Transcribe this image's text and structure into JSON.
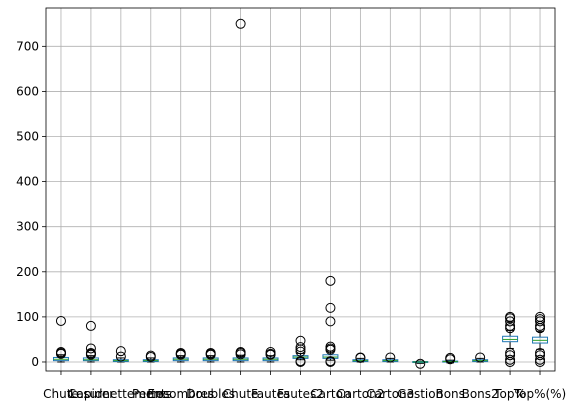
{
  "chart_data": {
    "type": "box",
    "title": "",
    "xlabel": "",
    "ylabel": "",
    "ylim": [
      -20,
      785
    ],
    "yticks": [
      0,
      100,
      200,
      300,
      400,
      500,
      600,
      700
    ],
    "grid": true,
    "colors": {
      "box": "#1f77b4",
      "median": "#2ca02c",
      "whisker": "#000000",
      "grid": "#b0b0b0"
    },
    "categories": [
      "Chute",
      "Cesurer",
      "Lapidnettements",
      "Pertes",
      "Encombres",
      "Doubles",
      "Chute",
      "Fautes",
      "Fautes2",
      "Carton",
      "Carton2",
      "Carton3",
      "Gestion",
      "Bons",
      "Bons2",
      "Top%",
      "Top%(%)"
    ],
    "series": [
      {
        "min": 0,
        "q1": 3,
        "median": 6,
        "q3": 10,
        "max": 16,
        "outliers": [
          18,
          20,
          22,
          91
        ]
      },
      {
        "min": 0,
        "q1": 3,
        "median": 5,
        "q3": 9,
        "max": 14,
        "outliers": [
          16,
          18,
          20,
          30,
          80
        ]
      },
      {
        "min": 0,
        "q1": 1,
        "median": 3,
        "q3": 5,
        "max": 9,
        "outliers": [
          12,
          24
        ]
      },
      {
        "min": 0,
        "q1": 1,
        "median": 3,
        "q3": 5,
        "max": 9,
        "outliers": [
          11,
          14
        ]
      },
      {
        "min": 0,
        "q1": 3,
        "median": 6,
        "q3": 9,
        "max": 14,
        "outliers": [
          16,
          18,
          20
        ]
      },
      {
        "min": 0,
        "q1": 3,
        "median": 6,
        "q3": 9,
        "max": 14,
        "outliers": [
          16,
          18,
          20
        ]
      },
      {
        "min": 0,
        "q1": 3,
        "median": 6,
        "q3": 9,
        "max": 15,
        "outliers": [
          17,
          20,
          22,
          750
        ]
      },
      {
        "min": 0,
        "q1": 3,
        "median": 6,
        "q3": 9,
        "max": 14,
        "outliers": [
          16,
          18,
          22
        ]
      },
      {
        "min": 5,
        "q1": 8,
        "median": 11,
        "q3": 14,
        "max": 19,
        "outliers": [
          0,
          2,
          23,
          28,
          33,
          47
        ]
      },
      {
        "min": 4,
        "q1": 8,
        "median": 11,
        "q3": 16,
        "max": 24,
        "outliers": [
          0,
          2,
          27,
          30,
          34,
          90,
          120,
          180
        ]
      },
      {
        "min": 0,
        "q1": 1,
        "median": 3,
        "q3": 5,
        "max": 8,
        "outliers": [
          9,
          10
        ]
      },
      {
        "min": 0,
        "q1": 1,
        "median": 3,
        "q3": 5,
        "max": 8,
        "outliers": [
          10
        ]
      },
      {
        "min": -3,
        "q1": -1,
        "median": 0,
        "q3": 1,
        "max": 2,
        "outliers": [
          -4
        ]
      },
      {
        "min": -2,
        "q1": 0,
        "median": 1,
        "q3": 2,
        "max": 4,
        "outliers": [
          6,
          9
        ]
      },
      {
        "min": 0,
        "q1": 1,
        "median": 3,
        "q3": 5,
        "max": 8,
        "outliers": [
          10
        ]
      },
      {
        "min": 30,
        "q1": 45,
        "median": 50,
        "q3": 57,
        "max": 70,
        "outliers": [
          0,
          5,
          15,
          20,
          75,
          80,
          90,
          97,
          100
        ]
      },
      {
        "min": 28,
        "q1": 42,
        "median": 48,
        "q3": 55,
        "max": 68,
        "outliers": [
          0,
          5,
          15,
          20,
          75,
          80,
          90,
          95,
          100
        ]
      }
    ]
  }
}
